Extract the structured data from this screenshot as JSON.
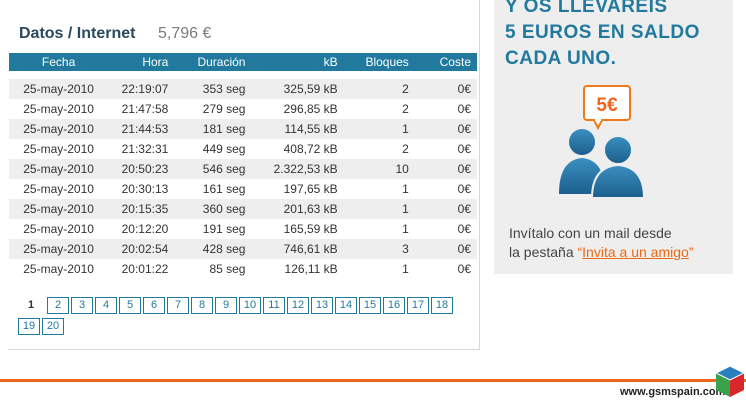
{
  "header": {
    "title": "Datos / Internet",
    "total": "5,796 €"
  },
  "table": {
    "columns": [
      "Fecha",
      "Hora",
      "Duración",
      "kB",
      "Bloques",
      "Coste"
    ],
    "rows": [
      [
        "25-may-2010",
        "22:19:07",
        "353 seg",
        "325,59 kB",
        "2",
        "0€"
      ],
      [
        "25-may-2010",
        "21:47:58",
        "279 seg",
        "296,85 kB",
        "2",
        "0€"
      ],
      [
        "25-may-2010",
        "21:44:53",
        "181 seg",
        "114,55 kB",
        "1",
        "0€"
      ],
      [
        "25-may-2010",
        "21:32:31",
        "449 seg",
        "408,72 kB",
        "2",
        "0€"
      ],
      [
        "25-may-2010",
        "20:50:23",
        "546 seg",
        "2.322,53 kB",
        "10",
        "0€"
      ],
      [
        "25-may-2010",
        "20:30:13",
        "161 seg",
        "197,65 kB",
        "1",
        "0€"
      ],
      [
        "25-may-2010",
        "20:15:35",
        "360 seg",
        "201,63 kB",
        "1",
        "0€"
      ],
      [
        "25-may-2010",
        "20:12:20",
        "191 seg",
        "165,59 kB",
        "1",
        "0€"
      ],
      [
        "25-may-2010",
        "20:02:54",
        "428 seg",
        "746,61 kB",
        "3",
        "0€"
      ],
      [
        "25-may-2010",
        "20:01:22",
        "85 seg",
        "126,11 kB",
        "1",
        "0€"
      ]
    ]
  },
  "pagination": {
    "current": "1",
    "pages": [
      "2",
      "3",
      "4",
      "5",
      "6",
      "7",
      "8",
      "9",
      "10",
      "11",
      "12",
      "13",
      "14",
      "15",
      "16",
      "17",
      "18",
      "19",
      "20"
    ]
  },
  "promo": {
    "headline": [
      "Y OS LLEVAREIS",
      "5 EUROS EN SALDO",
      "CADA UNO."
    ],
    "badge": "5€",
    "text_line1": "Invítalo con un mail desde",
    "text_line2_prefix": "la pestaña",
    "link_text": "Invita a un amigo",
    "icon": "two-people-icon"
  },
  "footer": {
    "logo_text": "www.gsmspain.com"
  },
  "colors": {
    "accent": "#217a9e",
    "orange": "#f0641e",
    "row_alt": "#eeeeee"
  }
}
